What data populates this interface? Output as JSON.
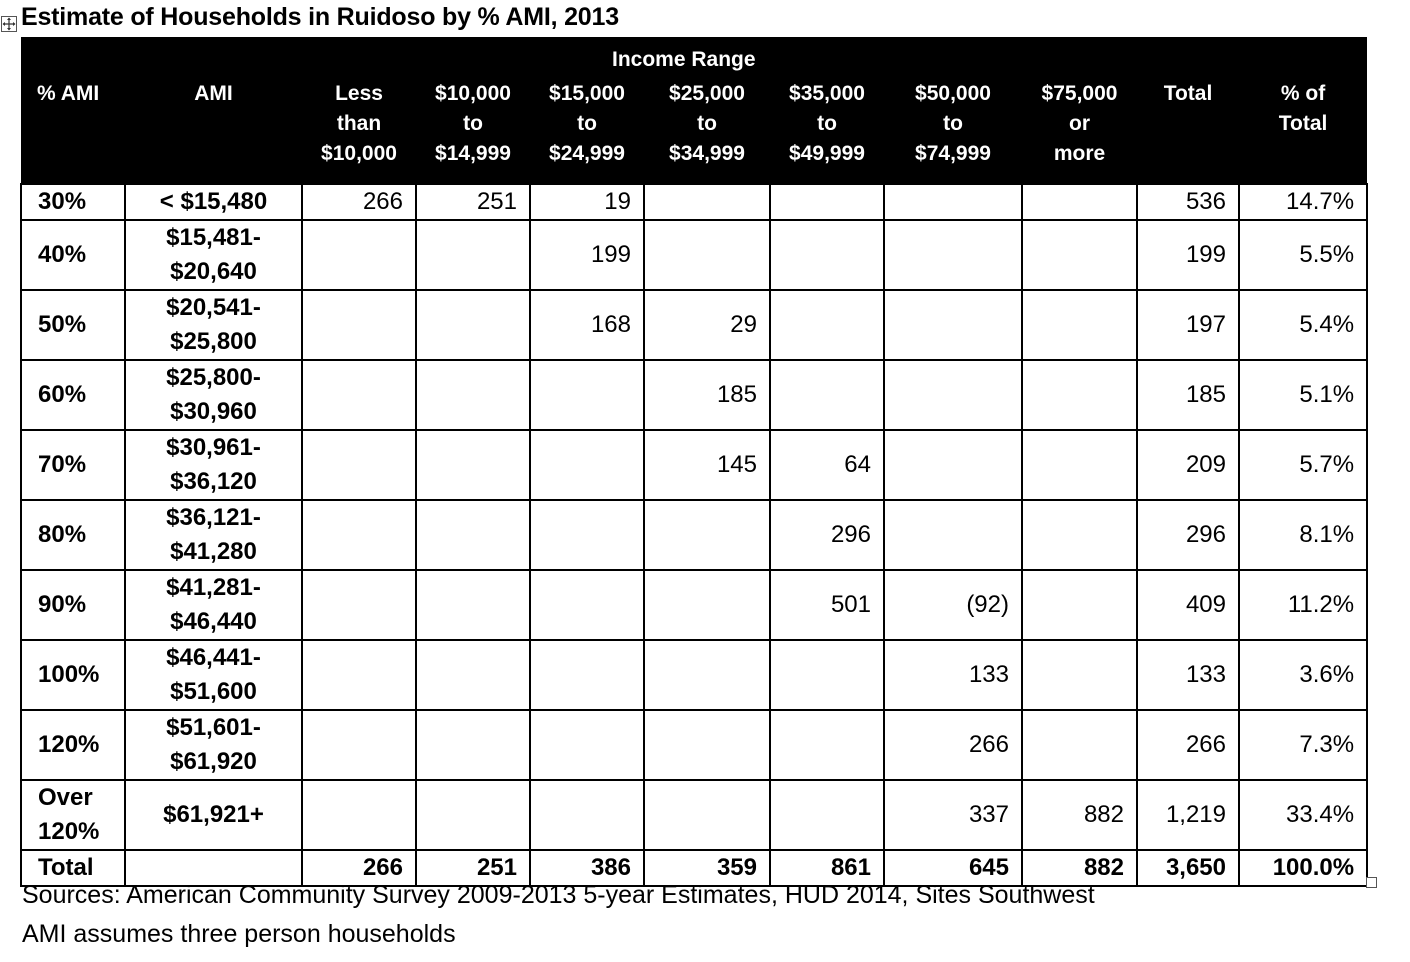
{
  "title": "Estimate of Households in Ruidoso by % AMI, 2013",
  "table": {
    "group_header": "Income Range",
    "columns": [
      {
        "key": "pct_ami",
        "lines": [
          "% AMI"
        ]
      },
      {
        "key": "ami",
        "lines": [
          "AMI"
        ]
      },
      {
        "key": "lt10k",
        "lines": [
          "Less",
          "than",
          "$10,000"
        ]
      },
      {
        "key": "10k",
        "lines": [
          "$10,000",
          "to",
          "$14,999"
        ]
      },
      {
        "key": "15k",
        "lines": [
          "$15,000",
          "to",
          "$24,999"
        ]
      },
      {
        "key": "25k",
        "lines": [
          "$25,000",
          "to",
          "$34,999"
        ]
      },
      {
        "key": "35k",
        "lines": [
          "$35,000",
          "to",
          "$49,999"
        ]
      },
      {
        "key": "50k",
        "lines": [
          "$50,000",
          "to",
          "$74,999"
        ]
      },
      {
        "key": "75k",
        "lines": [
          "$75,000",
          "or",
          "more"
        ]
      },
      {
        "key": "total",
        "lines": [
          "Total"
        ]
      },
      {
        "key": "pct_total",
        "lines": [
          "% of",
          "Total"
        ]
      }
    ],
    "rows": [
      {
        "pct_ami": [
          "30%"
        ],
        "ami": [
          "< $15,480"
        ],
        "values": [
          "266",
          "251",
          "19",
          "",
          "",
          "",
          "",
          "536",
          "14.7%"
        ]
      },
      {
        "pct_ami": [
          "40%"
        ],
        "ami": [
          "$15,481-",
          "$20,640"
        ],
        "values": [
          "",
          "",
          "199",
          "",
          "",
          "",
          "",
          "199",
          "5.5%"
        ]
      },
      {
        "pct_ami": [
          "50%"
        ],
        "ami": [
          "$20,541-",
          "$25,800"
        ],
        "values": [
          "",
          "",
          "168",
          "29",
          "",
          "",
          "",
          "197",
          "5.4%"
        ]
      },
      {
        "pct_ami": [
          "60%"
        ],
        "ami": [
          "$25,800-",
          "$30,960"
        ],
        "values": [
          "",
          "",
          "",
          "185",
          "",
          "",
          "",
          "185",
          "5.1%"
        ]
      },
      {
        "pct_ami": [
          "70%"
        ],
        "ami": [
          "$30,961-",
          "$36,120"
        ],
        "values": [
          "",
          "",
          "",
          "145",
          "64",
          "",
          "",
          "209",
          "5.7%"
        ]
      },
      {
        "pct_ami": [
          "80%"
        ],
        "ami": [
          "$36,121-",
          "$41,280"
        ],
        "values": [
          "",
          "",
          "",
          "",
          "296",
          "",
          "",
          "296",
          "8.1%"
        ]
      },
      {
        "pct_ami": [
          "90%"
        ],
        "ami": [
          "$41,281-",
          "$46,440"
        ],
        "values": [
          "",
          "",
          "",
          "",
          "501",
          "(92)",
          "",
          "409",
          "11.2%"
        ]
      },
      {
        "pct_ami": [
          "100%"
        ],
        "ami": [
          "$46,441-",
          "$51,600"
        ],
        "values": [
          "",
          "",
          "",
          "",
          "",
          "133",
          "",
          "133",
          "3.6%"
        ]
      },
      {
        "pct_ami": [
          "120%"
        ],
        "ami": [
          "$51,601-",
          "$61,920"
        ],
        "values": [
          "",
          "",
          "",
          "",
          "",
          "266",
          "",
          "266",
          "7.3%"
        ]
      },
      {
        "pct_ami": [
          "Over",
          "120%"
        ],
        "ami": [
          "$61,921+"
        ],
        "values": [
          "",
          "",
          "",
          "",
          "",
          "337",
          "882",
          "1,219",
          "33.4%"
        ]
      }
    ],
    "total_row": {
      "pct_ami": [
        "Total"
      ],
      "ami": [
        ""
      ],
      "values": [
        "266",
        "251",
        "386",
        "359",
        "861",
        "645",
        "882",
        "3,650",
        "100.0%"
      ]
    }
  },
  "sources": [
    "Sources:  American Community Survey 2009-2013 5-year Estimates, HUD 2014, Sites Southwest",
    "AMI assumes three person households"
  ],
  "icons": {
    "move_handle": "move-arrows-icon",
    "resize_handle": "resize-square-icon"
  }
}
